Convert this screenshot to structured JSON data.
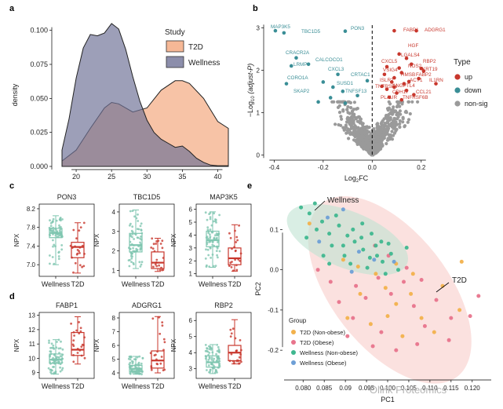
{
  "figure": {
    "watermark": "Olink Proteomics",
    "panel_labels": [
      "a",
      "b",
      "c",
      "d",
      "e"
    ]
  },
  "colors": {
    "t2d": "#f6b896",
    "wellness": "#6f7296",
    "up": "#c8372d",
    "down": "#3a8e96",
    "nonsig": "#9a9a9a",
    "box_wellness": "#7fc6b0",
    "box_t2d": "#c8372d",
    "pca_t2d_nonobese": "#f2b14c",
    "pca_t2d_obese": "#e8748c",
    "pca_wellness_nonobese": "#3fb78f",
    "pca_wellness_obese": "#6e9fd6",
    "ellipse_t2d": "#f8c8c4",
    "ellipse_wellness": "#bfe3d2"
  },
  "chart_data": [
    {
      "id": "a",
      "type": "area",
      "title": "",
      "xlabel": "",
      "ylabel": "density",
      "xlim": [
        17,
        42.5
      ],
      "ylim": [
        0,
        0.105
      ],
      "xticks": [
        "20",
        "25",
        "30",
        "35",
        "40"
      ],
      "xtick_values": [
        20,
        25,
        30,
        35,
        40
      ],
      "yticks": [
        "0.000",
        "0.025",
        "0.050",
        "0.075",
        "0.100"
      ],
      "ytick_values": [
        0,
        0.025,
        0.05,
        0.075,
        0.1
      ],
      "legend_title": "Study",
      "series": [
        {
          "name": "T2D",
          "x": [
            18,
            20,
            22,
            24,
            25,
            26,
            28,
            30,
            32,
            34,
            35,
            36,
            38,
            40,
            41.5
          ],
          "y": [
            0.004,
            0.012,
            0.028,
            0.043,
            0.047,
            0.046,
            0.04,
            0.043,
            0.056,
            0.063,
            0.063,
            0.061,
            0.05,
            0.033,
            0.028
          ]
        },
        {
          "name": "Wellness",
          "x": [
            18,
            19,
            20,
            21,
            22,
            23,
            24,
            25,
            26,
            27,
            28,
            29,
            30,
            31,
            32,
            33,
            34,
            35,
            36,
            37,
            38,
            39,
            40,
            41.5
          ],
          "y": [
            0.012,
            0.035,
            0.065,
            0.087,
            0.097,
            0.096,
            0.098,
            0.105,
            0.101,
            0.086,
            0.066,
            0.048,
            0.034,
            0.025,
            0.02,
            0.017,
            0.014,
            0.015,
            0.011,
            0.006,
            0.003,
            0.001,
            0.0005,
            0.0005
          ]
        }
      ]
    },
    {
      "id": "b",
      "type": "scatter",
      "xlabel": "Log",
      "xlabel_sub": "2",
      "xlabel_tail": "FC",
      "ylabel": "−Log",
      "ylabel_sub": "10",
      "ylabel_tail": " (adjust-P)",
      "xlim": [
        -0.43,
        0.3
      ],
      "ylim": [
        -0.05,
        3.1
      ],
      "xticks": [
        "-0.4",
        "-0.2",
        "0.0",
        "0.2"
      ],
      "xtick_values": [
        -0.4,
        -0.2,
        0,
        0.2
      ],
      "yticks": [
        "0",
        "1",
        "2",
        "3"
      ],
      "ytick_values": [
        0,
        1,
        2,
        3
      ],
      "legend_title": "Type",
      "legend": [
        "up",
        "down",
        "non-sig"
      ],
      "points_up": [
        [
          0.09,
          2.93
        ],
        [
          0.18,
          2.93
        ],
        [
          0.11,
          2.38
        ],
        [
          0.14,
          2.28
        ],
        [
          0.16,
          2.14
        ],
        [
          0.06,
          2.08
        ],
        [
          0.2,
          2.04
        ],
        [
          0.11,
          2.05
        ],
        [
          0.05,
          1.9
        ],
        [
          0.12,
          1.94
        ],
        [
          0.21,
          1.98
        ],
        [
          0.09,
          1.82
        ],
        [
          0.19,
          1.8
        ],
        [
          0.15,
          1.73
        ],
        [
          0.08,
          1.72
        ],
        [
          0.13,
          1.68
        ],
        [
          0.26,
          1.68
        ],
        [
          0.04,
          1.62
        ],
        [
          0.09,
          1.6
        ],
        [
          0.06,
          1.55
        ],
        [
          0.14,
          1.52
        ],
        [
          0.1,
          1.46
        ],
        [
          0.17,
          1.42
        ],
        [
          0.07,
          1.36
        ],
        [
          0.12,
          1.3
        ]
      ],
      "points_down": [
        [
          -0.395,
          2.93
        ],
        [
          -0.36,
          2.88
        ],
        [
          -0.11,
          2.92
        ],
        [
          -0.31,
          2.29
        ],
        [
          -0.26,
          2.14
        ],
        [
          -0.33,
          2.1
        ],
        [
          -0.35,
          1.68
        ],
        [
          -0.2,
          1.72
        ],
        [
          -0.16,
          1.6
        ],
        [
          -0.12,
          1.5
        ],
        [
          -0.17,
          1.35
        ],
        [
          -0.22,
          1.25
        ],
        [
          -0.11,
          1.22
        ],
        [
          -0.06,
          1.4
        ],
        [
          -0.14,
          1.9
        ],
        [
          -0.02,
          1.75
        ]
      ],
      "labels_up": [
        "FABP1",
        "ADGRG1",
        "HGF",
        "LGALS4",
        "CXCL5",
        "RBP2",
        "NOS2",
        "KRT19",
        "VSIG4",
        "HMSB",
        "FABP2",
        "ACY1",
        "IL1RN",
        "ANGPTL4",
        "TNFRSF4",
        "CCL21",
        "PLAUR",
        "TNFRSF6B",
        "ISLR2",
        "CDH17"
      ],
      "labels_down": [
        "MAP3K5",
        "TBC1D5",
        "PON3",
        "CRACR2A",
        "LRMP",
        "CALCOCO1",
        "CORO1A",
        "CXCL3",
        "CRTAC1",
        "SUSD1",
        "SKAP2",
        "TNFSF13"
      ]
    },
    {
      "id": "c",
      "type": "box",
      "categories": [
        "Wellness",
        "T2D"
      ],
      "ylabel": "NPX",
      "panels": [
        {
          "title": "PON3",
          "ylim": [
            6.75,
            8.3
          ],
          "yticks": [
            "7.0",
            "7.4",
            "7.8",
            "8.2"
          ],
          "ytick_values": [
            7.0,
            7.4,
            7.8,
            8.2
          ],
          "boxes": [
            {
              "min": 7.0,
              "q1": 7.58,
              "median": 7.68,
              "q3": 7.78,
              "max": 8.05
            },
            {
              "min": 6.82,
              "q1": 7.15,
              "median": 7.38,
              "q3": 7.48,
              "max": 7.9
            }
          ]
        },
        {
          "title": "TBC1D5",
          "ylim": [
            0.7,
            4.4
          ],
          "yticks": [
            "1",
            "2",
            "3",
            "4"
          ],
          "ytick_values": [
            1,
            2,
            3,
            4
          ],
          "boxes": [
            {
              "min": 1.1,
              "q1": 1.95,
              "median": 2.3,
              "q3": 2.9,
              "max": 4.1
            },
            {
              "min": 0.95,
              "q1": 1.1,
              "median": 1.4,
              "q3": 1.95,
              "max": 2.65
            }
          ]
        },
        {
          "title": "MAP3K5",
          "ylim": [
            0.8,
            6.4
          ],
          "yticks": [
            "1",
            "2",
            "3",
            "4",
            "5",
            "6"
          ],
          "ytick_values": [
            1,
            2,
            3,
            4,
            5,
            6
          ],
          "boxes": [
            {
              "min": 1.5,
              "q1": 3.1,
              "median": 3.6,
              "q3": 4.3,
              "max": 5.8
            },
            {
              "min": 1.2,
              "q1": 1.7,
              "median": 2.2,
              "q3": 3.0,
              "max": 4.8
            }
          ]
        }
      ]
    },
    {
      "id": "d",
      "type": "box",
      "categories": [
        "Wellness",
        "T2D"
      ],
      "ylabel": "NPX",
      "panels": [
        {
          "title": "FABP1",
          "ylim": [
            8.6,
            13.2
          ],
          "yticks": [
            "9",
            "10",
            "11",
            "12",
            "13"
          ],
          "ytick_values": [
            9,
            10,
            11,
            12,
            13
          ],
          "boxes": [
            {
              "min": 8.9,
              "q1": 9.65,
              "median": 9.9,
              "q3": 10.3,
              "max": 11.3
            },
            {
              "min": 9.6,
              "q1": 10.2,
              "median": 10.6,
              "q3": 11.8,
              "max": 12.9
            }
          ]
        },
        {
          "title": "ADGRG1",
          "ylim": [
            3.6,
            8.4
          ],
          "yticks": [
            "4",
            "5",
            "6",
            "7",
            "8"
          ],
          "ytick_values": [
            4,
            5,
            6,
            7,
            8
          ],
          "boxes": [
            {
              "min": 3.9,
              "q1": 4.1,
              "median": 4.3,
              "q3": 4.55,
              "max": 5.2
            },
            {
              "min": 4.0,
              "q1": 4.35,
              "median": 4.9,
              "q3": 5.6,
              "max": 8.1
            }
          ]
        },
        {
          "title": "RBP2",
          "ylim": [
            2.4,
            6.5
          ],
          "yticks": [
            "3",
            "4",
            "5",
            "6"
          ],
          "ytick_values": [
            3,
            4,
            5,
            6
          ],
          "boxes": [
            {
              "min": 2.7,
              "q1": 3.1,
              "median": 3.4,
              "q3": 3.8,
              "max": 4.5
            },
            {
              "min": 3.3,
              "q1": 3.5,
              "median": 4.0,
              "q3": 4.45,
              "max": 6.05
            }
          ]
        }
      ]
    },
    {
      "id": "e",
      "type": "scatter",
      "xlabel": "PC1",
      "ylabel": "PC2",
      "xlim": [
        0.0755,
        0.1245
      ],
      "ylim": [
        -0.27,
        0.175
      ],
      "xticks": [
        "0.080",
        "0.085",
        "0.09",
        "0.095",
        "0.100",
        "0.105",
        "0.110",
        "0.115",
        "0.120"
      ],
      "xtick_values": [
        0.08,
        0.085,
        0.09,
        0.095,
        0.1,
        0.105,
        0.11,
        0.115,
        0.12
      ],
      "yticks": [
        "0.1",
        "0.0",
        "-0.1",
        "-0.2"
      ],
      "ytick_values": [
        0.1,
        0,
        -0.1,
        -0.2
      ],
      "annotations": [
        "Wellness",
        "T2D"
      ],
      "legend_title": "Group",
      "legend": [
        "T2D (Non-obese)",
        "T2D (Obese)",
        "Wellness (Non-obese)",
        "Wellness (Obese)"
      ],
      "series": [
        {
          "name": "T2D (Non-obese)",
          "points": [
            [
              0.0815,
              0.115
            ],
            [
              0.0895,
              0.025
            ],
            [
              0.093,
              0.008
            ],
            [
              0.0972,
              -0.01
            ],
            [
              0.0935,
              -0.06
            ],
            [
              0.0995,
              -0.045
            ],
            [
              0.102,
              -0.085
            ],
            [
              0.1055,
              -0.06
            ],
            [
              0.1,
              -0.115
            ],
            [
              0.1035,
              -0.165
            ],
            [
              0.108,
              -0.12
            ],
            [
              0.113,
              -0.04
            ],
            [
              0.117,
              -0.1
            ],
            [
              0.102,
              0.015
            ],
            [
              0.096,
              -0.135
            ],
            [
              0.0905,
              -0.12
            ],
            [
              0.111,
              -0.155
            ],
            [
              0.1175,
              0.02
            ],
            [
              0.106,
              -0.01
            ]
          ]
        },
        {
          "name": "T2D (Obese)",
          "points": [
            [
              0.0835,
              0.0
            ],
            [
              0.0865,
              -0.03
            ],
            [
              0.0885,
              -0.08
            ],
            [
              0.0918,
              -0.12
            ],
            [
              0.0948,
              -0.07
            ],
            [
              0.0978,
              -0.02
            ],
            [
              0.1008,
              -0.06
            ],
            [
              0.1038,
              -0.03
            ],
            [
              0.1062,
              -0.09
            ],
            [
              0.1088,
              -0.14
            ],
            [
              0.1115,
              -0.075
            ],
            [
              0.115,
              -0.12
            ],
            [
              0.1195,
              -0.115
            ],
            [
              0.1215,
              -0.065
            ],
            [
              0.102,
              -0.2
            ],
            [
              0.0965,
              -0.19
            ],
            [
              0.0905,
              -0.165
            ],
            [
              0.097,
              0.06
            ],
            [
              0.1002,
              0.035
            ],
            [
              0.1045,
              0.005
            ],
            [
              0.108,
              -0.025
            ],
            [
              0.0925,
              -0.04
            ],
            [
              0.0985,
              -0.155
            ],
            [
              0.107,
              -0.185
            ],
            [
              0.1145,
              -0.175
            ]
          ]
        },
        {
          "name": "Wellness (Non-obese)",
          "points": [
            [
              0.0795,
              0.155
            ],
            [
              0.0815,
              0.14
            ],
            [
              0.0845,
              0.12
            ],
            [
              0.0862,
              0.09
            ],
            [
              0.0885,
              0.11
            ],
            [
              0.0905,
              0.085
            ],
            [
              0.0922,
              0.07
            ],
            [
              0.0942,
              0.05
            ],
            [
              0.0958,
              0.03
            ],
            [
              0.0972,
              0.06
            ],
            [
              0.0988,
              0.02
            ],
            [
              0.1008,
              0.04
            ],
            [
              0.1025,
              0.0
            ],
            [
              0.0868,
              0.06
            ],
            [
              0.0848,
              0.035
            ],
            [
              0.0898,
              0.035
            ],
            [
              0.0918,
              0.1
            ],
            [
              0.0938,
              0.08
            ],
            [
              0.0962,
              0.09
            ],
            [
              0.0985,
              0.07
            ],
            [
              0.1002,
              0.065
            ],
            [
              0.0878,
              0.135
            ],
            [
              0.0832,
              0.1
            ],
            [
              0.0808,
              0.08
            ],
            [
              0.0912,
              0.015
            ],
            [
              0.0952,
              0.005
            ],
            [
              0.0995,
              -0.01
            ],
            [
              0.0862,
              0.015
            ],
            [
              0.094,
              0.115
            ],
            [
              0.1045,
              0.055
            ],
            [
              0.0895,
              0.06
            ],
            [
              0.0975,
              0.035
            ],
            [
              0.0828,
              0.165
            ]
          ]
        },
        {
          "name": "Wellness (Obese)",
          "points": [
            [
              0.0858,
              0.13
            ],
            [
              0.0895,
              0.15
            ],
            [
              0.0932,
              0.045
            ],
            [
              0.0968,
              0.025
            ],
            [
              0.0838,
              0.07
            ],
            [
              0.0915,
              -0.005
            ],
            [
              0.1015,
              0.02
            ]
          ]
        }
      ]
    }
  ]
}
